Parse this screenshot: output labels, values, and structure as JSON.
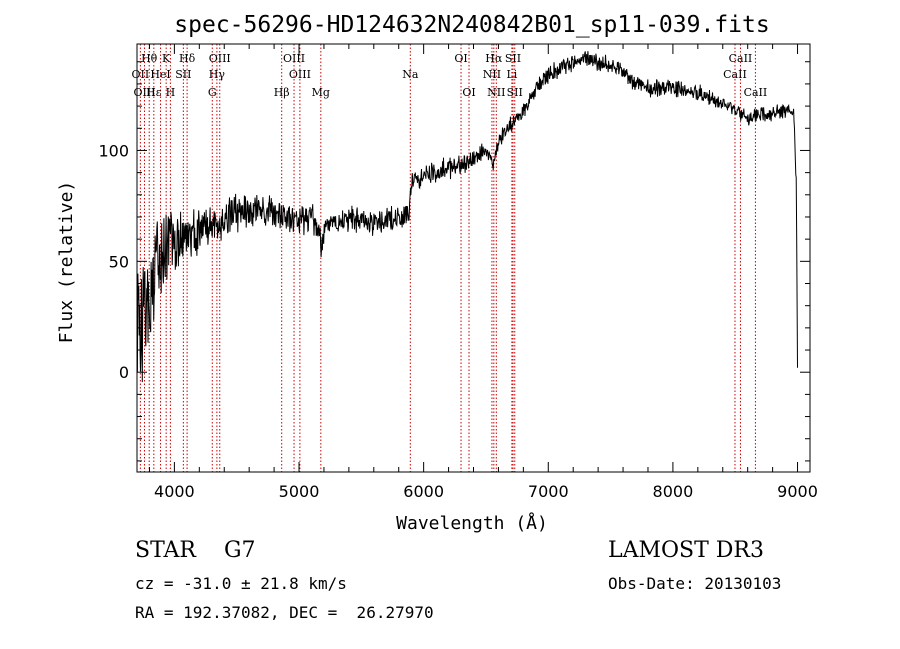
{
  "chart_data": {
    "type": "line",
    "title": "spec-56296-HD124632N240842B01_sp11-039.fits",
    "xlabel": "Wavelength (Å)",
    "ylabel": "Flux (relative)",
    "xlim": [
      3700,
      9100
    ],
    "ylim": [
      -45,
      148
    ],
    "xticks": [
      4000,
      5000,
      6000,
      7000,
      8000,
      9000
    ],
    "xtick_labels": [
      "4000",
      "5000",
      "6000",
      "7000",
      "8000",
      "9000"
    ],
    "yticks": [
      0,
      50,
      100
    ],
    "ytick_labels": [
      "0",
      "50",
      "100"
    ],
    "x_minor_step": 200,
    "y_minor_step": 10,
    "series": [
      {
        "name": "spectrum",
        "x": [
          3700,
          3740,
          3780,
          3820,
          3860,
          3900,
          3950,
          4000,
          4050,
          4100,
          4150,
          4200,
          4250,
          4300,
          4350,
          4400,
          4450,
          4500,
          4600,
          4700,
          4800,
          4860,
          4900,
          5000,
          5100,
          5180,
          5250,
          5400,
          5600,
          5800,
          5880,
          5900,
          5950,
          6000,
          6100,
          6200,
          6300,
          6400,
          6500,
          6560,
          6600,
          6700,
          6800,
          6900,
          7000,
          7100,
          7200,
          7300,
          7400,
          7500,
          7600,
          7700,
          7800,
          8000,
          8200,
          8400,
          8500,
          8600,
          8700,
          8800,
          8900,
          8970,
          8990,
          9000
        ],
        "y": [
          20,
          25,
          35,
          40,
          48,
          55,
          58,
          60,
          62,
          63,
          60,
          64,
          65,
          66,
          64,
          68,
          72,
          72,
          73,
          73,
          72,
          71,
          70,
          68,
          70,
          60,
          68,
          68,
          68,
          70,
          71,
          85,
          87,
          88,
          90,
          92,
          93,
          96,
          100,
          92,
          104,
          112,
          118,
          128,
          134,
          137,
          140,
          142,
          140,
          138,
          136,
          130,
          128,
          128,
          126,
          120,
          118,
          114,
          116,
          116,
          118,
          115,
          85,
          2
        ],
        "noise": [
          22,
          22,
          21,
          20,
          16,
          14,
          12,
          11,
          10,
          9,
          9,
          8,
          7,
          7,
          7,
          7,
          7,
          7,
          6,
          6,
          6,
          6,
          5,
          5,
          5,
          6,
          5,
          5,
          5,
          5,
          4,
          4,
          4,
          4,
          4,
          4,
          4,
          3,
          3,
          3,
          3,
          3,
          3,
          3,
          3,
          3,
          3,
          3,
          3,
          3,
          3,
          3,
          3,
          3,
          3,
          3,
          3,
          3,
          3,
          3,
          3,
          3,
          2,
          0
        ]
      }
    ],
    "line_labels": [
      {
        "label": "Hθ",
        "wave": 3798,
        "row": 1
      },
      {
        "label": "K",
        "wave": 3934,
        "row": 1
      },
      {
        "label": "Hδ",
        "wave": 4102,
        "row": 1
      },
      {
        "label": "OIII",
        "wave": 4364,
        "row": 1
      },
      {
        "label": "OIII",
        "wave": 4960,
        "row": 1
      },
      {
        "label": "OI",
        "wave": 6300,
        "row": 1
      },
      {
        "label": "Hα",
        "wave": 6563,
        "row": 1
      },
      {
        "label": "SII",
        "wave": 6717,
        "row": 1
      },
      {
        "label": "CaII",
        "wave": 8542,
        "row": 1
      },
      {
        "label": "OII",
        "wave": 3727,
        "row": 2
      },
      {
        "label": "HeI",
        "wave": 3889,
        "row": 2
      },
      {
        "label": "SII",
        "wave": 4072,
        "row": 2
      },
      {
        "label": "Hγ",
        "wave": 4341,
        "row": 2
      },
      {
        "label": "OIII",
        "wave": 5007,
        "row": 2
      },
      {
        "label": "Na",
        "wave": 5893,
        "row": 2
      },
      {
        "label": "NII",
        "wave": 6548,
        "row": 2
      },
      {
        "label": "Li",
        "wave": 6708,
        "row": 2
      },
      {
        "label": "CaII",
        "wave": 8498,
        "row": 2
      },
      {
        "label": "OIII",
        "wave": 3760,
        "row": 3
      },
      {
        "label": "Hε",
        "wave": 3835,
        "row": 3
      },
      {
        "label": "H",
        "wave": 3968,
        "row": 3
      },
      {
        "label": "G",
        "wave": 4304,
        "row": 3
      },
      {
        "label": "Hβ",
        "wave": 4861,
        "row": 3
      },
      {
        "label": "Mg",
        "wave": 5175,
        "row": 3
      },
      {
        "label": "OI",
        "wave": 6364,
        "row": 3
      },
      {
        "label": "NII",
        "wave": 6583,
        "row": 3
      },
      {
        "label": "SII",
        "wave": 6731,
        "row": 3
      },
      {
        "label": "CaII",
        "wave": 8662,
        "row": 3
      }
    ]
  },
  "info": {
    "class_text": "STAR    G7",
    "survey": "LAMOST DR3",
    "cz_text": "cz = -31.0 ± 21.8 km/s",
    "obs_date": "Obs-Date: 20130103",
    "radec_text": "RA = 192.37082, DEC =  26.27970"
  },
  "colors": {
    "spectrum": "#000000",
    "line_marker": "#cc0000",
    "axes": "#000000"
  }
}
